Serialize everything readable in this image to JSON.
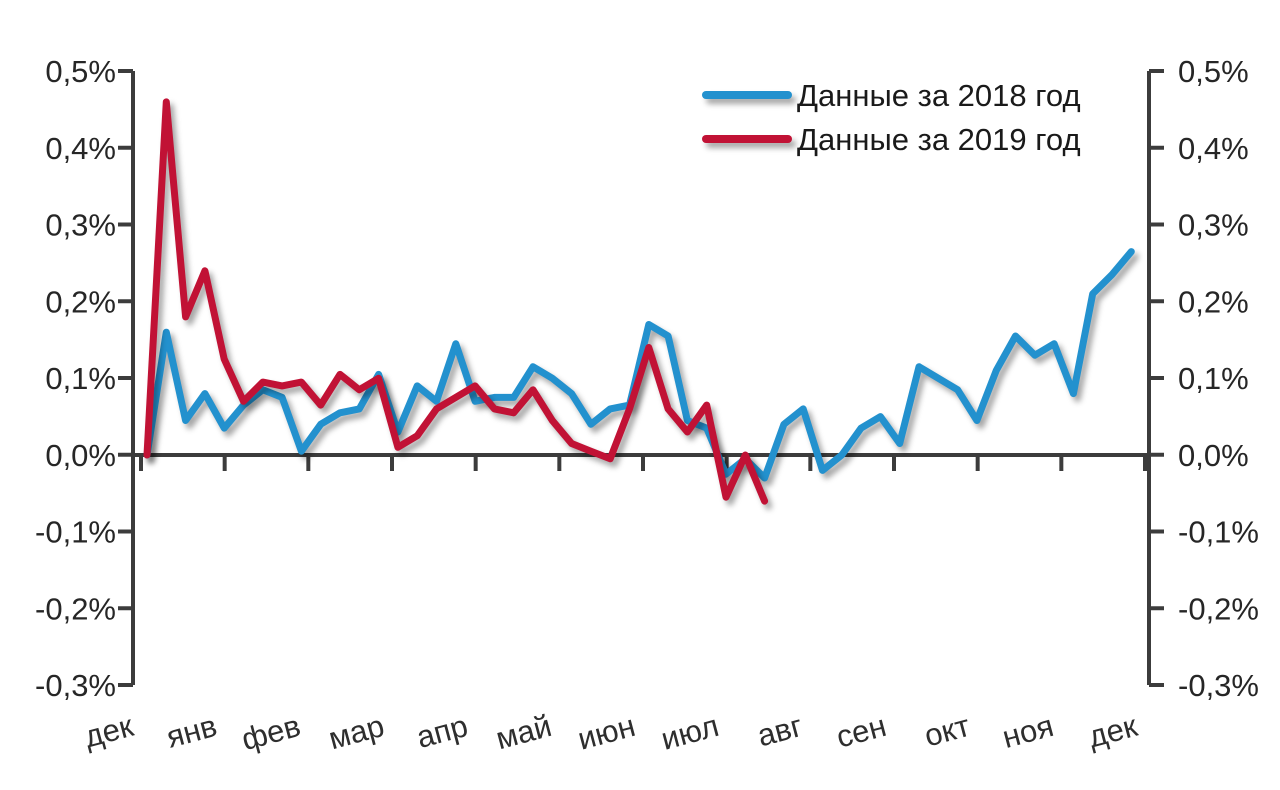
{
  "chart_data": {
    "type": "line",
    "title": "",
    "x_tick_labels": [
      "дек",
      "янв",
      "фев",
      "мар",
      "апр",
      "май",
      "июн",
      "июл",
      "авг",
      "сен",
      "окт",
      "ноя",
      "дек"
    ],
    "y_tick_labels": [
      "0,5%",
      "0,4%",
      "0,3%",
      "0,2%",
      "0,1%",
      "0,0%",
      "-0,1%",
      "-0,2%",
      "-0,3%"
    ],
    "y_axis": {
      "min": -0.3,
      "max": 0.5,
      "step": 0.1,
      "unit": "%",
      "mirrored_right_axis": true
    },
    "x_axis": {
      "unit": "week",
      "points_per_series_max": 52,
      "label_rotation_deg": -15
    },
    "grid": false,
    "legend": {
      "position": "top-right"
    },
    "colors": {
      "axis": "#3C3C3C",
      "text": "#262626"
    },
    "series": [
      {
        "name": "Данные за 2018 год",
        "year": "2018",
        "color": "#2391CE",
        "values": [
          0,
          0.16,
          0.045,
          0.08,
          0.035,
          0.065,
          0.085,
          0.075,
          0.005,
          0.04,
          0.055,
          0.06,
          0.105,
          0.03,
          0.09,
          0.07,
          0.145,
          0.07,
          0.075,
          0.075,
          0.115,
          0.1,
          0.08,
          0.04,
          0.06,
          0.065,
          0.17,
          0.155,
          0.045,
          0.035,
          -0.025,
          -0.005,
          -0.03,
          0.04,
          0.06,
          -0.02,
          0,
          0.035,
          0.05,
          0.015,
          0.115,
          0.1,
          0.085,
          0.045,
          0.11,
          0.155,
          0.13,
          0.145,
          0.08,
          0.21,
          0.235,
          0.265
        ]
      },
      {
        "name": "Данные за 2019 год",
        "year": "2019",
        "color": "#C11235",
        "values": [
          0,
          0.46,
          0.18,
          0.24,
          0.125,
          0.07,
          0.095,
          0.09,
          0.095,
          0.065,
          0.105,
          0.085,
          0.1,
          0.01,
          0.025,
          0.06,
          0.075,
          0.09,
          0.06,
          0.055,
          0.085,
          0.045,
          0.015,
          0.005,
          -0.005,
          0.06,
          0.14,
          0.06,
          0.03,
          0.065,
          -0.055,
          0,
          -0.06
        ]
      }
    ]
  }
}
